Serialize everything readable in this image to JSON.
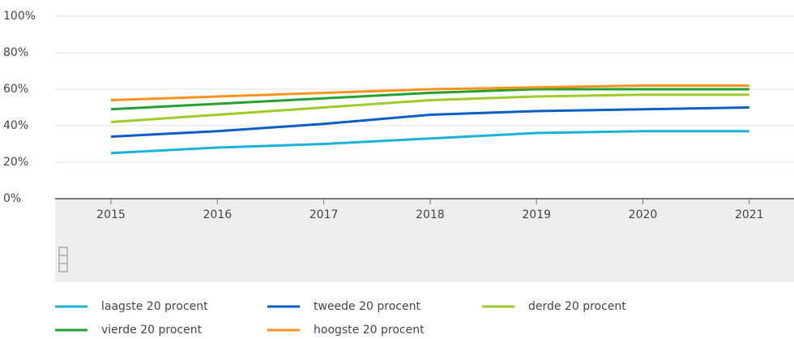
{
  "chart_data": {
    "type": "line",
    "categories": [
      "2015",
      "2016",
      "2017",
      "2018",
      "2019",
      "2020",
      "2021"
    ],
    "series": [
      {
        "name": "laagste 20 procent",
        "color": "#1ab2d8",
        "values": [
          25,
          28,
          30,
          33,
          36,
          37,
          37
        ]
      },
      {
        "name": "tweede 20 procent",
        "color": "#0b5fc4",
        "values": [
          34,
          37,
          41,
          46,
          48,
          49,
          50
        ]
      },
      {
        "name": "derde 20 procent",
        "color": "#9dcb2c",
        "values": [
          42,
          46,
          50,
          54,
          56,
          57,
          57
        ]
      },
      {
        "name": "vierde 20 procent",
        "color": "#23a12e",
        "values": [
          49,
          52,
          55,
          58,
          60,
          60,
          60
        ]
      },
      {
        "name": "hoogste 20 procent",
        "color": "#f7941d",
        "values": [
          54,
          56,
          58,
          60,
          61,
          62,
          62
        ]
      }
    ],
    "ylim": [
      0,
      100
    ],
    "yticks": [
      {
        "value": 0,
        "label": "0%"
      },
      {
        "value": 20,
        "label": "20%"
      },
      {
        "value": 40,
        "label": "40%"
      },
      {
        "value": 60,
        "label": "60%"
      },
      {
        "value": 80,
        "label": "80%"
      },
      {
        "value": 100,
        "label": "100%"
      }
    ],
    "grid": true,
    "legend": "bottom"
  }
}
